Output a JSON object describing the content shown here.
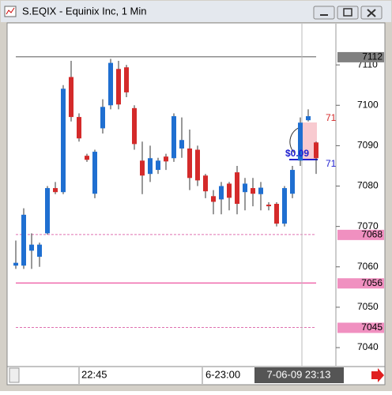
{
  "window_title": "S.EQIX - Equinix Inc, 1 Min",
  "chart_data": {
    "type": "candlestick",
    "categories": [
      null,
      null,
      null,
      null,
      null,
      null,
      null,
      null,
      "22:45",
      null,
      null,
      null,
      null,
      null,
      null,
      null,
      null,
      null,
      null,
      null,
      null,
      null,
      null,
      "6-23:00",
      null,
      null,
      null,
      null,
      null,
      null,
      null,
      null,
      null,
      null,
      null,
      null,
      "7-06-09 23:13",
      null,
      null
    ],
    "open": [
      7060.3,
      7060.3,
      7064,
      7062.5,
      7068.3,
      7079.5,
      7078.5,
      7107,
      7097.1,
      7087.5,
      7078.1,
      7094.3,
      7100,
      7109,
      7109.4,
      7099.3,
      7086.3,
      7083,
      7084,
      7087.3,
      7086.9,
      7089.3,
      7089.3,
      7089,
      7082.6,
      7077.5,
      7076.7,
      7080.6,
      7083.4,
      7078.5,
      7079.5,
      7078,
      7075.4,
      7075.6,
      7070.7,
      7078.1,
      7086.3,
      7096.3,
      7090.8
    ],
    "high": [
      7066.5,
      7074.5,
      7068.3,
      7066,
      7080,
      7081,
      7105,
      7111,
      7098,
      7088,
      7089,
      7101.5,
      7111.5,
      7111,
      7110,
      7100,
      7091,
      7090,
      7087,
      7088,
      7098,
      7097,
      7094,
      7090,
      7083,
      7079,
      7081,
      7081,
      7085,
      7082,
      7082,
      7081,
      7076,
      7076,
      7080,
      7085,
      7097,
      7099,
      7091
    ],
    "low": [
      7059.5,
      7059.5,
      7059.5,
      7060,
      7068,
      7078,
      7078,
      7096,
      7091,
      7086,
      7077,
      7093,
      7099,
      7099,
      7102,
      7089,
      7078,
      7081,
      7083,
      7084,
      7086,
      7087,
      7079,
      7080,
      7077,
      7073,
      7073,
      7074,
      7073,
      7074,
      7075,
      7074,
      7074,
      7070,
      7070,
      7077,
      7085,
      7096,
      7083
    ],
    "close": [
      7061,
      7072.9,
      7065.5,
      7065.5,
      7079.5,
      7078.5,
      7104.1,
      7097.1,
      7091.8,
      7086.5,
      7088.5,
      7099.6,
      7110.5,
      7100.2,
      7103.2,
      7090.4,
      7082.6,
      7086.9,
      7086.3,
      7086.1,
      7097.3,
      7091.4,
      7082,
      7081.4,
      7078.7,
      7076.1,
      7080,
      7077.1,
      7075.6,
      7080.6,
      7078.1,
      7079.6,
      7075,
      7070.7,
      7079.5,
      7084,
      7095.7,
      7097.3,
      7086.9
    ],
    "up_color": "#1f6fd1",
    "down_color": "#d42a2a",
    "ylim": [
      7035.7,
      7120.2
    ],
    "yticks": [
      7040,
      7050,
      7060,
      7070,
      7080,
      7090,
      7100,
      7110
    ],
    "price_lines": [
      {
        "value": 7112,
        "color": "#555555",
        "style": "solid",
        "tag_color": "#808080"
      },
      {
        "value": 7068,
        "color": "#e070b0",
        "style": "dashed",
        "tag_color": "#f090c0"
      },
      {
        "value": 7056,
        "color": "#f070b0",
        "style": "solid",
        "tag_color": "#f090c0"
      },
      {
        "value": 7045,
        "color": "#e070b0",
        "style": "dashed",
        "tag_color": "#f090c0"
      }
    ],
    "annotations": [
      "$0.09",
      "71",
      "71"
    ]
  }
}
